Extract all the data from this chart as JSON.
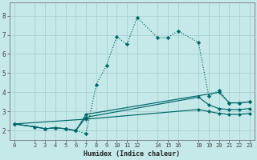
{
  "xlabel": "Humidex (Indice chaleur)",
  "bg_color": "#c5e8e8",
  "grid_color": "#add4d4",
  "line_color": "#006868",
  "xlim": [
    -0.5,
    23.5
  ],
  "ylim": [
    1.5,
    8.7
  ],
  "xticks": [
    0,
    2,
    3,
    4,
    5,
    6,
    7,
    8,
    9,
    10,
    11,
    12,
    14,
    15,
    16,
    18,
    19,
    20,
    21,
    22,
    23
  ],
  "yticks": [
    2,
    3,
    4,
    5,
    6,
    7,
    8
  ],
  "dotted_line": {
    "x": [
      0,
      2,
      3,
      4,
      5,
      6,
      7,
      8,
      9,
      10,
      11,
      12,
      14,
      15,
      16,
      18,
      19,
      20,
      21,
      22,
      23
    ],
    "y": [
      2.35,
      2.2,
      2.1,
      2.15,
      2.1,
      2.0,
      1.85,
      4.4,
      5.4,
      6.9,
      6.5,
      7.9,
      6.85,
      6.85,
      7.2,
      6.6,
      3.8,
      4.1,
      3.45,
      3.45,
      3.5
    ]
  },
  "solid_lines": [
    {
      "x": [
        0,
        2,
        3,
        4,
        5,
        6,
        7,
        20,
        21,
        22,
        23
      ],
      "y": [
        2.35,
        2.2,
        2.1,
        2.15,
        2.1,
        2.0,
        2.85,
        4.0,
        3.45,
        3.45,
        3.5
      ]
    },
    {
      "x": [
        0,
        2,
        3,
        4,
        5,
        6,
        7,
        18,
        19,
        20,
        21,
        22,
        23
      ],
      "y": [
        2.35,
        2.2,
        2.1,
        2.15,
        2.1,
        2.0,
        2.7,
        3.75,
        3.35,
        3.15,
        3.1,
        3.1,
        3.15
      ]
    },
    {
      "x": [
        0,
        7,
        18,
        19,
        20,
        21,
        22,
        23
      ],
      "y": [
        2.35,
        2.6,
        3.1,
        3.0,
        2.9,
        2.85,
        2.85,
        2.9
      ]
    }
  ]
}
